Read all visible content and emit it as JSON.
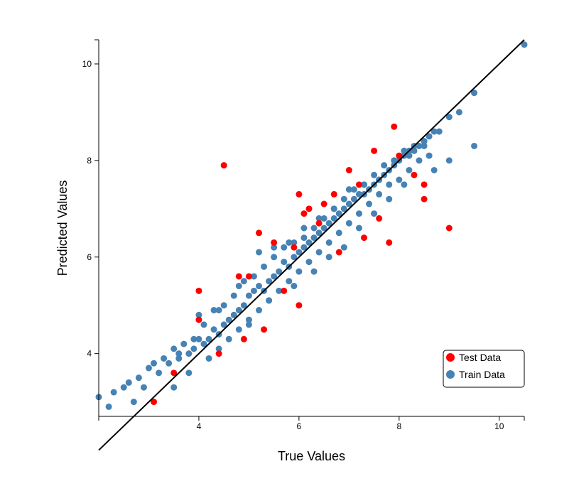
{
  "chart_data": {
    "type": "scatter",
    "xlabel": "True Values",
    "ylabel": "Predicted Values",
    "xlim": [
      2.0,
      10.5
    ],
    "ylim": [
      2.7,
      10.5
    ],
    "x_ticks": [
      "4",
      "6",
      "8",
      "10"
    ],
    "y_ticks": [
      "4",
      "6",
      "8",
      "10"
    ],
    "grid": false,
    "legend_position": "bottom-right",
    "legend": [
      "Test Data",
      "Train Data"
    ],
    "colors": {
      "Test Data": "#ff0000",
      "Train Data": "#4682b4",
      "reference_line": "#000000"
    },
    "reference_line": {
      "x": [
        2.0,
        10.5
      ],
      "y": [
        2.0,
        10.5
      ]
    },
    "series": [
      {
        "name": "Train Data",
        "x": [
          2.0,
          2.2,
          2.3,
          2.5,
          2.6,
          2.7,
          2.8,
          2.9,
          3.0,
          3.1,
          3.2,
          3.3,
          3.4,
          3.5,
          3.6,
          3.7,
          3.8,
          3.9,
          4.0,
          4.1,
          4.2,
          4.3,
          4.4,
          4.5,
          4.6,
          4.7,
          4.8,
          4.9,
          5.0,
          5.1,
          5.2,
          5.3,
          5.4,
          5.5,
          5.6,
          5.7,
          5.8,
          5.9,
          6.0,
          6.1,
          6.2,
          6.3,
          6.4,
          6.5,
          6.6,
          6.7,
          6.8,
          6.9,
          7.0,
          7.1,
          7.2,
          7.3,
          7.4,
          7.5,
          7.6,
          7.7,
          7.8,
          7.9,
          8.0,
          8.1,
          8.2,
          8.3,
          8.4,
          8.5,
          8.6,
          8.7,
          8.8,
          9.0,
          9.2,
          9.5,
          10.5,
          3.6,
          3.9,
          4.1,
          4.3,
          4.5,
          4.7,
          4.9,
          5.1,
          5.3,
          5.5,
          5.7,
          5.9,
          6.1,
          6.3,
          6.5,
          6.7,
          6.9,
          7.1,
          7.3,
          7.5,
          7.7,
          7.9,
          8.1,
          8.3,
          8.5,
          3.5,
          3.8,
          4.2,
          4.4,
          4.6,
          4.8,
          5.0,
          5.2,
          5.4,
          5.6,
          5.8,
          6.0,
          6.2,
          6.4,
          6.6,
          6.8,
          7.0,
          7.2,
          7.4,
          7.6,
          7.8,
          8.0,
          8.2,
          8.4,
          8.6,
          4.0,
          4.4,
          4.8,
          5.2,
          5.5,
          5.8,
          6.1,
          6.4,
          6.7,
          7.0,
          7.3,
          7.6,
          7.9,
          8.2,
          8.5,
          5.0,
          5.4,
          5.9,
          6.3,
          6.6,
          6.9,
          7.2,
          7.5,
          7.8,
          8.1,
          8.7,
          9.0,
          9.5
        ],
        "y": [
          3.1,
          2.9,
          3.2,
          3.3,
          3.4,
          3.0,
          3.5,
          3.3,
          3.7,
          3.8,
          3.6,
          3.9,
          3.8,
          4.1,
          4.0,
          4.2,
          4.0,
          4.1,
          4.3,
          4.2,
          4.3,
          4.5,
          4.4,
          4.6,
          4.7,
          4.8,
          4.9,
          5.0,
          5.2,
          5.3,
          5.4,
          5.3,
          5.5,
          5.6,
          5.7,
          5.9,
          5.8,
          6.0,
          6.1,
          6.2,
          6.3,
          6.4,
          6.5,
          6.6,
          6.7,
          6.8,
          6.9,
          7.0,
          7.1,
          7.2,
          7.3,
          7.3,
          7.4,
          7.5,
          7.6,
          7.7,
          7.8,
          7.9,
          8.0,
          8.1,
          8.2,
          8.2,
          8.3,
          8.4,
          8.5,
          8.6,
          8.6,
          8.9,
          9.0,
          9.4,
          10.4,
          3.9,
          4.3,
          4.6,
          4.9,
          5.0,
          5.2,
          5.5,
          5.6,
          5.8,
          6.0,
          6.2,
          6.3,
          6.4,
          6.6,
          6.8,
          7.0,
          7.2,
          7.4,
          7.5,
          7.7,
          7.9,
          8.0,
          8.2,
          8.3,
          8.4,
          3.3,
          3.6,
          3.9,
          4.1,
          4.3,
          4.5,
          4.7,
          4.9,
          5.1,
          5.3,
          5.5,
          5.7,
          5.9,
          6.1,
          6.3,
          6.5,
          6.7,
          6.9,
          7.1,
          7.3,
          7.5,
          7.6,
          7.8,
          8.0,
          8.1,
          4.8,
          4.9,
          5.4,
          6.1,
          6.2,
          6.3,
          6.6,
          6.8,
          7.0,
          7.4,
          7.5,
          7.6,
          8.0,
          8.1,
          8.3,
          4.6,
          5.1,
          5.4,
          5.7,
          6.0,
          6.2,
          6.6,
          6.9,
          7.2,
          7.5,
          7.8,
          8.0,
          8.3
        ]
      },
      {
        "name": "Test Data",
        "x": [
          3.1,
          3.5,
          4.0,
          4.0,
          4.4,
          4.5,
          4.8,
          4.9,
          5.0,
          5.2,
          5.3,
          5.5,
          5.7,
          5.9,
          6.0,
          6.0,
          6.1,
          6.2,
          6.4,
          6.5,
          6.7,
          6.8,
          7.0,
          7.2,
          7.3,
          7.5,
          7.6,
          7.8,
          7.9,
          8.0,
          8.3,
          8.5,
          8.5,
          9.0
        ],
        "y": [
          3.0,
          3.6,
          4.7,
          5.3,
          4.0,
          7.9,
          5.6,
          4.3,
          5.6,
          6.5,
          4.5,
          6.3,
          5.3,
          6.2,
          5.0,
          7.3,
          6.9,
          7.0,
          6.7,
          7.1,
          7.3,
          6.1,
          7.8,
          7.5,
          6.4,
          8.2,
          6.8,
          6.3,
          8.7,
          8.1,
          7.7,
          7.5,
          7.2,
          6.6
        ]
      }
    ]
  }
}
